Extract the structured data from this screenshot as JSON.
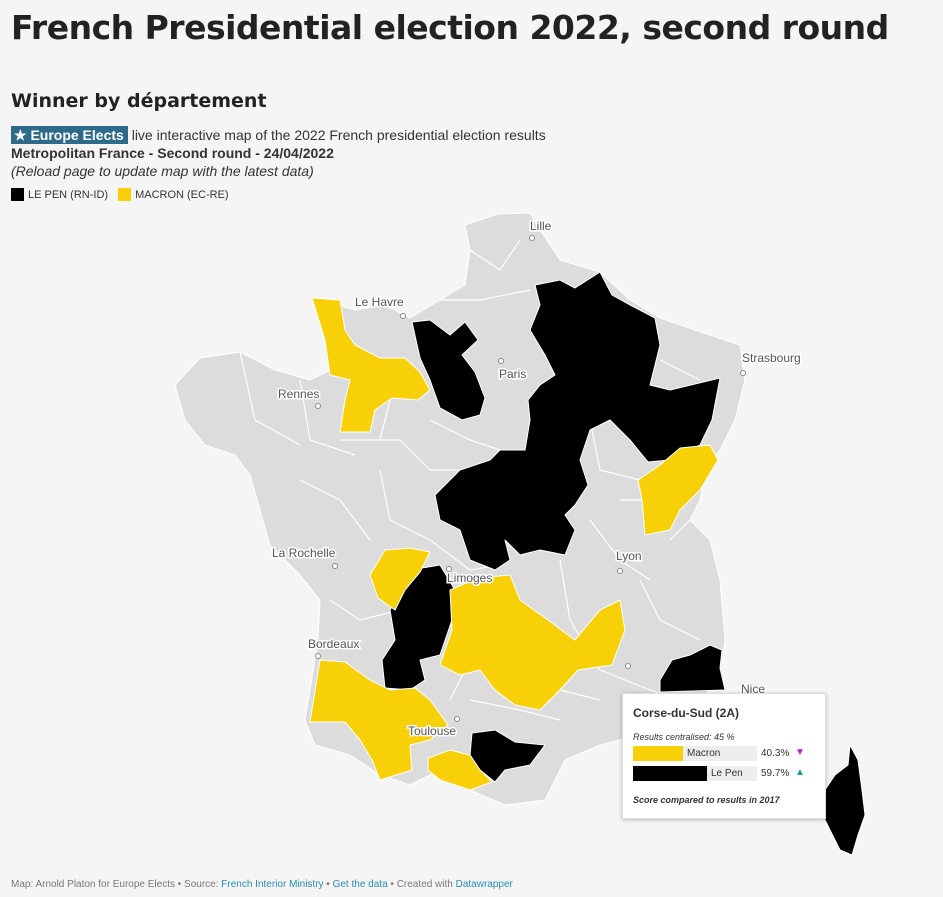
{
  "title": "French Presidential election 2022, second round",
  "subtitle": "Winner by département",
  "description": {
    "badge": "★ Europe Elects",
    "text": " live interactive map of the 2022 French presidential election results",
    "line2": "Metropolitan France - Second round - 24/04/2022",
    "line3": "(Reload page to update map with the latest data)"
  },
  "legend": [
    {
      "label": "LE PEN (RN-ID)",
      "color": "#000000"
    },
    {
      "label": "MACRON (EC-RE)",
      "color": "#f8d007"
    }
  ],
  "colors": {
    "lepen": "#000000",
    "macron": "#f8d007",
    "other": "#dcdcdc",
    "background": "#f5f5f5"
  },
  "cities": {
    "lille": "Lille",
    "le_havre": "Le Havre",
    "paris": "Paris",
    "strasbourg": "Strasbourg",
    "rennes": "Rennes",
    "la_rochelle": "La Rochelle",
    "limoges": "Limoges",
    "lyon": "Lyon",
    "bordeaux": "Bordeaux",
    "toulouse": "Toulouse",
    "nice": "Nice"
  },
  "tooltip": {
    "title": "Corse-du-Sud (2A)",
    "results_line": "Results centralised: 45 %",
    "rows": [
      {
        "label": "Macron",
        "value": "40.3%",
        "fraction": 0.403,
        "arrow": "▼",
        "arrow_color": "#c020c0",
        "color": "#f8d007"
      },
      {
        "label": "Le Pen",
        "value": "59.7%",
        "fraction": 0.597,
        "arrow": "▲",
        "arrow_color": "#1a9a8a",
        "color": "#000000"
      }
    ],
    "footnote": "Score compared to results in 2017"
  },
  "footer": {
    "prefix": "Map: Arnold Platon for Europe Elects • Source: ",
    "source": "French Interior Ministry",
    "sep1": " • ",
    "data_link": "Get the data",
    "sep2": " • Created with ",
    "tool": "Datawrapper"
  }
}
